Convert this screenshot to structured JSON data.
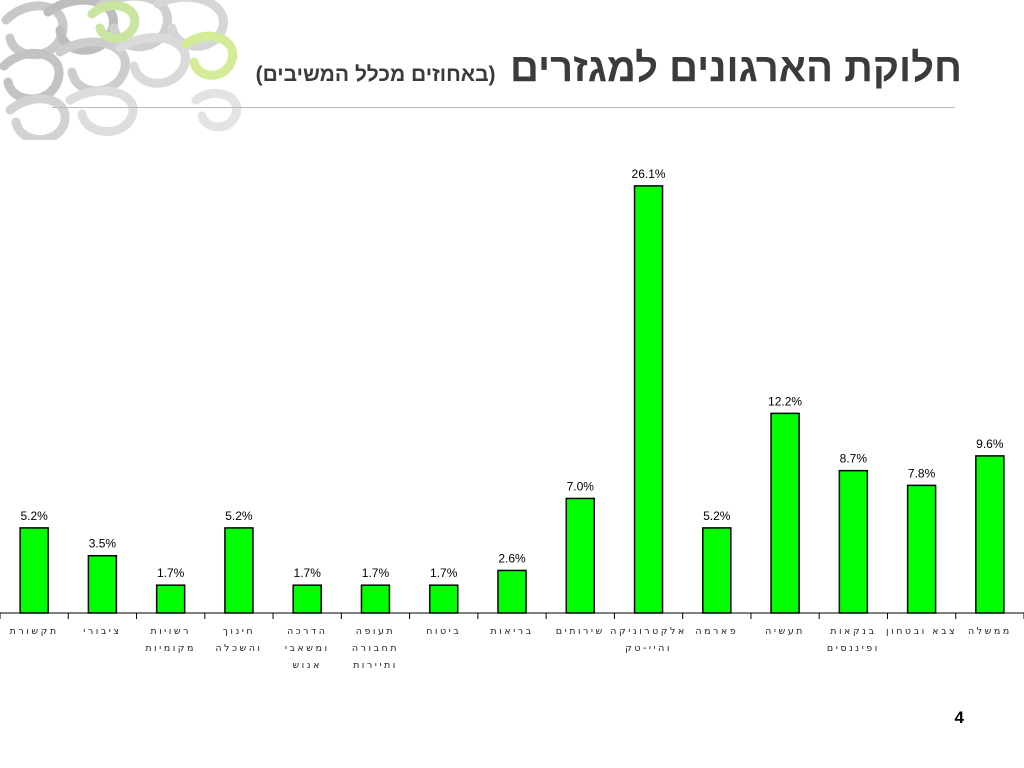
{
  "slide": {
    "title": "חלוקת הארגונים למגזרים",
    "subtitle": "(באחוזים מכלל המשיבים)",
    "page_number": "4",
    "decoration": "grey-and-green-loops-logo"
  },
  "colors": {
    "bar_fill": "#00ff00",
    "bar_stroke": "#000000",
    "title": "#3b3b3b",
    "rule": "#b9b9b9"
  },
  "chart_data": {
    "type": "bar",
    "title": "",
    "xlabel": "",
    "ylabel": "",
    "categories": [
      [
        "תקשורת"
      ],
      [
        "ציבורי"
      ],
      [
        "רשויות",
        "מקומיות"
      ],
      [
        "חינוך",
        "והשכלה"
      ],
      [
        "הדרכה",
        "ומשאבי",
        "אנוש"
      ],
      [
        "תעופה",
        "תחבורה",
        "ותיירות"
      ],
      [
        "ביטוח"
      ],
      [
        "בריאות"
      ],
      [
        "שירותים"
      ],
      [
        "אלקטרוניקה",
        "והיי-טק"
      ],
      [
        "פארמה"
      ],
      [
        "תעשיה"
      ],
      [
        "בנקאות",
        "ופיננסים"
      ],
      [
        "צבא ובטחון"
      ],
      [
        "ממשלה"
      ]
    ],
    "values": [
      5.2,
      3.5,
      1.7,
      5.2,
      1.7,
      1.7,
      1.7,
      2.6,
      7.0,
      26.1,
      5.2,
      12.2,
      8.7,
      7.8,
      9.6
    ],
    "value_labels": [
      "5.2%",
      "3.5%",
      "1.7%",
      "5.2%",
      "1.7%",
      "1.7%",
      "1.7%",
      "2.6%",
      "7.0%",
      "26.1%",
      "5.2%",
      "12.2%",
      "8.7%",
      "7.8%",
      "9.6%"
    ],
    "ylim": [
      0,
      27.5
    ],
    "grid": false,
    "legend": "none",
    "value_axis_visible": false
  }
}
